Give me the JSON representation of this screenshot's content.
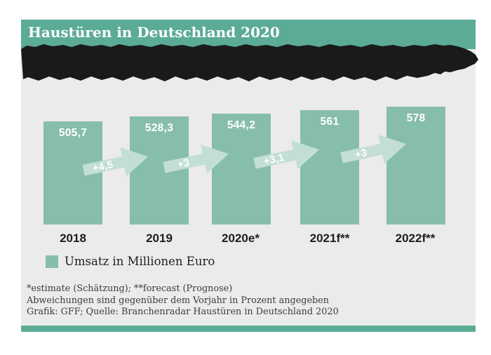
{
  "header": {
    "title": "Haustüren in Deutschland 2020"
  },
  "chart_data": {
    "type": "bar",
    "title": "Haustüren in Deutschland 2020",
    "categories": [
      "2018",
      "2019",
      "2020e*",
      "2021f**",
      "2022f**"
    ],
    "values": [
      505.7,
      528.3,
      544.2,
      561,
      578
    ],
    "value_labels": [
      "505,7",
      "528,3",
      "544,2",
      "561",
      "578"
    ],
    "change_labels": [
      "+4,5",
      "+3",
      "+3,1",
      "+3"
    ],
    "legend": "Umsatz in Millionen Euro",
    "ylabel": "",
    "xlabel": "",
    "ylim": [
      0,
      578
    ],
    "grid": false,
    "legend_position": "bottom-left",
    "notes": "Werte in Millionen Euro; Veränderung zum Vorjahr in Prozent auf Pfeilen"
  },
  "legend": {
    "label": "Umsatz in Millionen Euro"
  },
  "footer": {
    "line1": "*estimate (Schätzung); **forecast (Prognose)",
    "line2": "Abweichungen sind gegenüber dem Vorjahr in Prozent angegeben",
    "line3": "Grafik: GFF; Quelle: Branchenradar Haustüren in Deutschland 2020"
  },
  "colors": {
    "accent": "#5BAB96",
    "background": "#EBEBEB",
    "bar": "#87BDAC",
    "arrow": "#C3DED4",
    "redaction": "#1A1A1A",
    "text_dark": "#1d1d1b"
  }
}
